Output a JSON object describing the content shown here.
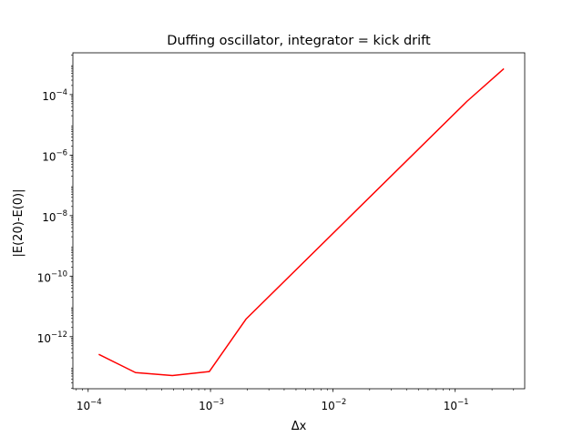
{
  "chart_data": {
    "type": "line",
    "title": "Duffing oscillator, integrator = kick drift",
    "xlabel": "Δx",
    "ylabel": "|E(20)-E(0)|",
    "xscale": "log",
    "yscale": "log",
    "xlim": [
      7.5e-05,
      0.37
    ],
    "ylim": [
      1.9e-14,
      0.0024
    ],
    "grid": false,
    "legend": "none",
    "x_ticks": [
      {
        "value": 0.0001,
        "base": "10",
        "exp": "−4"
      },
      {
        "value": 0.001,
        "base": "10",
        "exp": "−3"
      },
      {
        "value": 0.01,
        "base": "10",
        "exp": "−2"
      },
      {
        "value": 0.1,
        "base": "10",
        "exp": "−1"
      }
    ],
    "y_ticks": [
      {
        "value": 1e-12,
        "base": "10",
        "exp": "−12"
      },
      {
        "value": 1e-10,
        "base": "10",
        "exp": "−10"
      },
      {
        "value": 1e-08,
        "base": "10",
        "exp": "−8"
      },
      {
        "value": 1e-06,
        "base": "10",
        "exp": "−6"
      },
      {
        "value": 0.0001,
        "base": "10",
        "exp": "−4"
      }
    ],
    "series": [
      {
        "color": "#ff0000",
        "x": [
          0.000122,
          0.000244,
          0.000488,
          0.000977,
          0.00195,
          0.125,
          0.25
        ],
        "y": [
          2.6e-13,
          6.5e-14,
          5.2e-14,
          7e-14,
          3.8e-12,
          6e-05,
          0.00072
        ]
      }
    ]
  }
}
